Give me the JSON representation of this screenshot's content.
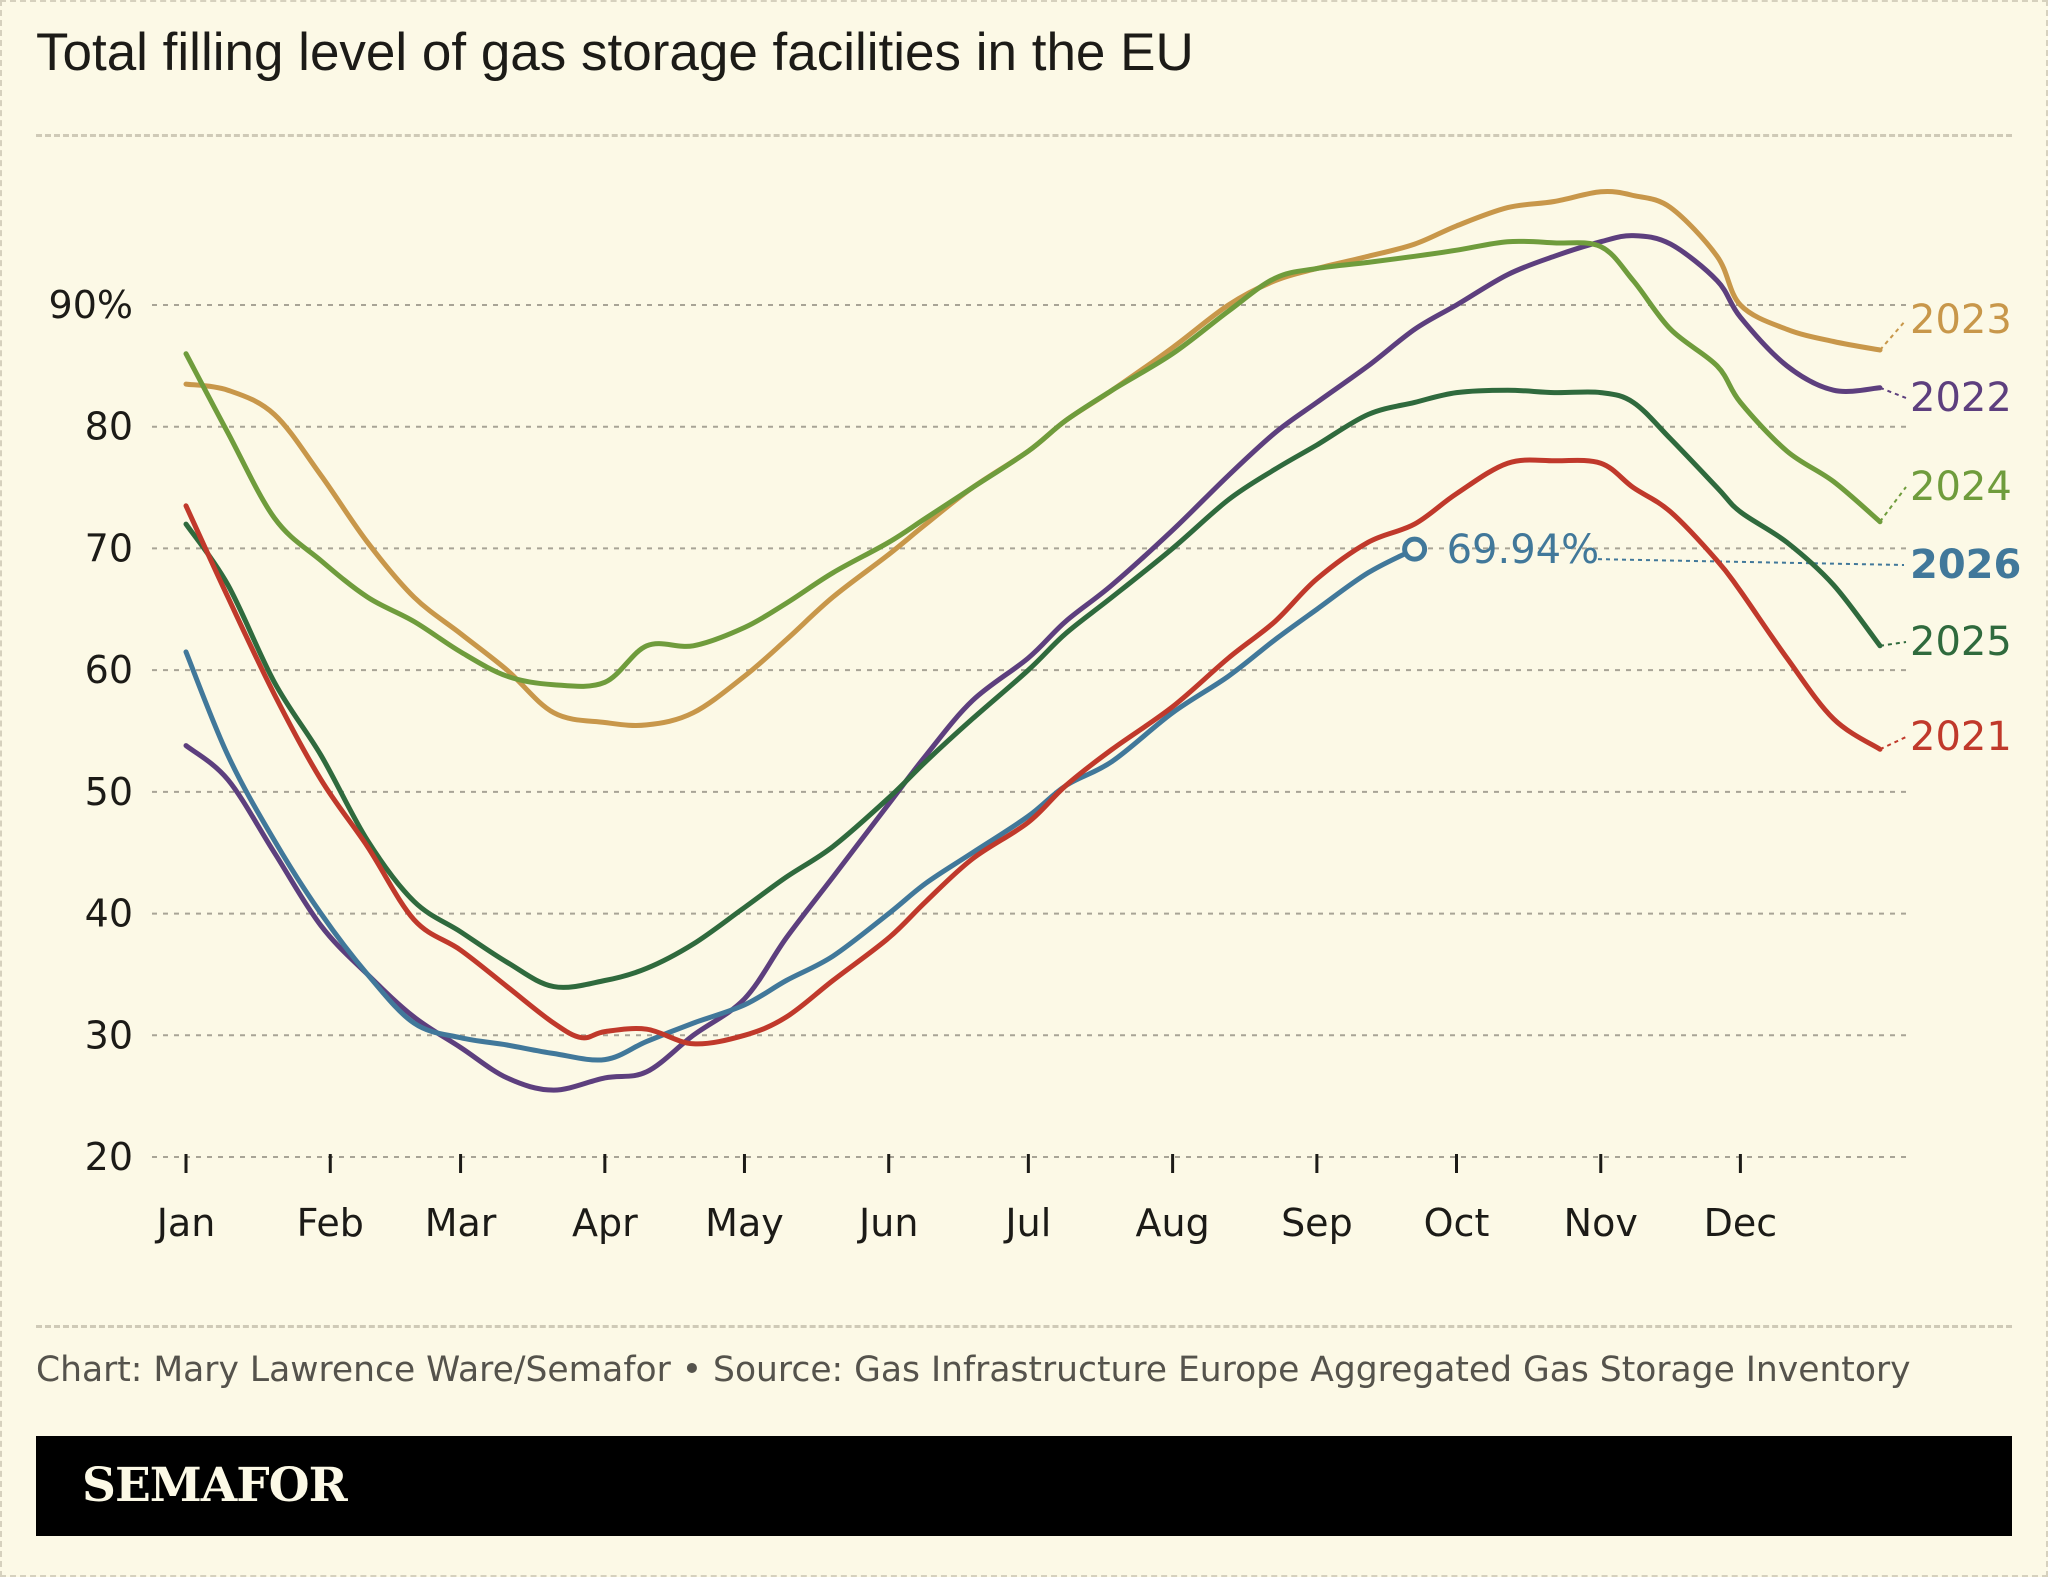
{
  "title": "Total filling level of gas storage facilities in the EU",
  "source": "Chart: Mary Lawrence Ware/Semafor • Source: Gas Infrastructure Europe Aggregated Gas Storage Inventory",
  "brand": "SEMAFOR",
  "colors": {
    "background": "#fcf9e6",
    "2021": "#c0392b",
    "2022": "#5d3f7e",
    "2023": "#c8974a",
    "2024": "#6f9c3c",
    "2025": "#2f6a3d",
    "2026": "#41789a"
  },
  "chart_data": {
    "type": "line",
    "title": "Total filling level of gas storage facilities in the EU",
    "xlabel": "",
    "ylabel": "",
    "x_unit": "day of year",
    "months": [
      "Jan",
      "Feb",
      "Mar",
      "Apr",
      "May",
      "Jun",
      "Jul",
      "Aug",
      "Sep",
      "Oct",
      "Nov",
      "Dec"
    ],
    "month_start_days": [
      1,
      32,
      60,
      91,
      121,
      152,
      182,
      213,
      244,
      274,
      305,
      335
    ],
    "ylim": [
      20,
      100
    ],
    "y_ticks": [
      20,
      30,
      40,
      50,
      60,
      70,
      80,
      90
    ],
    "y_tick_labels": [
      "20",
      "30",
      "40",
      "50",
      "60",
      "70",
      "80",
      "90%"
    ],
    "grid": true,
    "legend": "inline-right",
    "annotation": {
      "series": "2026",
      "day": 265,
      "value": 69.94,
      "text": "69.94%"
    },
    "series": [
      {
        "name": "2023",
        "days": [
          1,
          10,
          20,
          30,
          40,
          50,
          60,
          70,
          80,
          91,
          100,
          110,
          121,
          130,
          140,
          152,
          160,
          170,
          182,
          190,
          200,
          213,
          225,
          235,
          244,
          255,
          265,
          274,
          285,
          295,
          305,
          312,
          320,
          330,
          335,
          345,
          355,
          365
        ],
        "values": [
          83.5,
          83,
          81,
          76,
          70.5,
          66,
          63,
          60,
          56.5,
          55.7,
          55.5,
          56.5,
          59.5,
          62.5,
          66,
          69.5,
          72,
          75,
          78,
          80.5,
          83,
          86.5,
          90,
          92,
          93,
          94,
          95,
          96.5,
          98,
          98.5,
          99.3,
          99,
          98,
          94,
          90,
          88,
          87,
          86.3
        ]
      },
      {
        "name": "2022",
        "days": [
          1,
          10,
          20,
          30,
          40,
          50,
          60,
          70,
          80,
          91,
          100,
          110,
          121,
          130,
          140,
          152,
          160,
          170,
          182,
          190,
          200,
          213,
          225,
          235,
          244,
          255,
          265,
          274,
          285,
          295,
          305,
          312,
          320,
          330,
          335,
          345,
          355,
          365
        ],
        "values": [
          53.8,
          51,
          45,
          39,
          35,
          31.5,
          29,
          26.5,
          25.5,
          26.5,
          27,
          30,
          33,
          38,
          43,
          49,
          53,
          57.5,
          61,
          64,
          67,
          71.5,
          76,
          79.5,
          82,
          85,
          88,
          90,
          92.5,
          94,
          95.2,
          95.7,
          95,
          92,
          89,
          85,
          83,
          83.2
        ]
      },
      {
        "name": "2024",
        "days": [
          1,
          10,
          20,
          30,
          40,
          50,
          60,
          70,
          80,
          91,
          100,
          110,
          121,
          130,
          140,
          152,
          160,
          170,
          182,
          190,
          200,
          213,
          225,
          235,
          244,
          255,
          265,
          274,
          285,
          295,
          305,
          312,
          320,
          330,
          335,
          345,
          355,
          365
        ],
        "values": [
          86,
          79.5,
          72.5,
          69,
          66,
          64,
          61.5,
          59.5,
          58.8,
          59,
          62,
          62,
          63.5,
          65.5,
          68,
          70.5,
          72.5,
          75,
          78,
          80.5,
          83,
          86,
          89.5,
          92.2,
          93,
          93.5,
          94,
          94.5,
          95.2,
          95.1,
          94.8,
          92,
          88,
          85,
          82,
          78,
          75.5,
          72.2
        ]
      },
      {
        "name": "2026",
        "days": [
          1,
          10,
          20,
          30,
          40,
          50,
          60,
          70,
          80,
          91,
          100,
          110,
          121,
          130,
          140,
          152,
          160,
          170,
          182,
          190,
          200,
          213,
          225,
          235,
          244,
          255,
          265
        ],
        "values": [
          61.5,
          53,
          46,
          40,
          35,
          31,
          29.8,
          29.2,
          28.5,
          28,
          29.5,
          31,
          32.5,
          34.5,
          36.5,
          40,
          42.5,
          45,
          48,
          50.5,
          52.5,
          56.5,
          59.5,
          62.5,
          65,
          68,
          69.94
        ]
      },
      {
        "name": "2025",
        "days": [
          1,
          10,
          20,
          30,
          40,
          50,
          60,
          70,
          80,
          91,
          100,
          110,
          121,
          130,
          140,
          152,
          160,
          170,
          182,
          190,
          200,
          213,
          225,
          235,
          244,
          255,
          265,
          274,
          285,
          295,
          305,
          312,
          320,
          330,
          335,
          345,
          355,
          365
        ],
        "values": [
          72,
          67,
          59,
          53,
          46,
          41,
          38.5,
          36,
          34,
          34.5,
          35.5,
          37.5,
          40.5,
          43,
          45.5,
          49.5,
          52.5,
          56,
          60,
          63,
          66,
          70,
          74,
          76.5,
          78.5,
          81,
          82,
          82.8,
          83,
          82.8,
          82.8,
          82,
          79,
          75,
          73,
          70.5,
          67,
          62
        ]
      },
      {
        "name": "2021",
        "days": [
          1,
          10,
          20,
          30,
          40,
          50,
          60,
          70,
          80,
          86,
          91,
          100,
          110,
          121,
          130,
          140,
          152,
          160,
          170,
          182,
          190,
          200,
          213,
          225,
          235,
          244,
          255,
          265,
          274,
          285,
          295,
          305,
          312,
          320,
          330,
          335,
          345,
          355,
          365
        ],
        "values": [
          73.5,
          66,
          58,
          51,
          45.5,
          39.5,
          37,
          34,
          31,
          29.8,
          30.3,
          30.5,
          29.3,
          30,
          31.5,
          34.5,
          38,
          41,
          44.5,
          47.5,
          50.5,
          53.5,
          57,
          61,
          64,
          67.5,
          70.5,
          72,
          74.5,
          77,
          77.2,
          77,
          75,
          73,
          69,
          66.5,
          61,
          56,
          53.5
        ]
      }
    ]
  }
}
